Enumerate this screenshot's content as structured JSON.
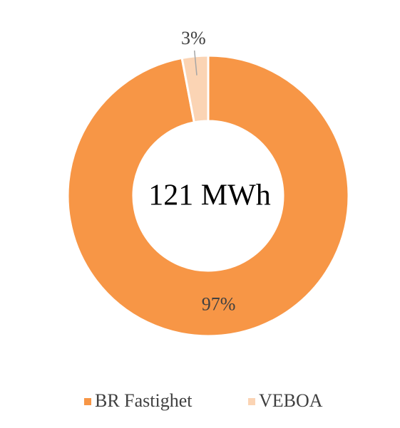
{
  "chart_data": {
    "type": "donut",
    "center_text": "121 MWh",
    "categories": [
      "BR Fastighet",
      "VEBOA"
    ],
    "values": [
      97,
      3
    ],
    "value_labels": [
      "97%",
      "3%"
    ],
    "colors": [
      "#F79646",
      "#FBD4B4"
    ],
    "legend": "bottom"
  }
}
